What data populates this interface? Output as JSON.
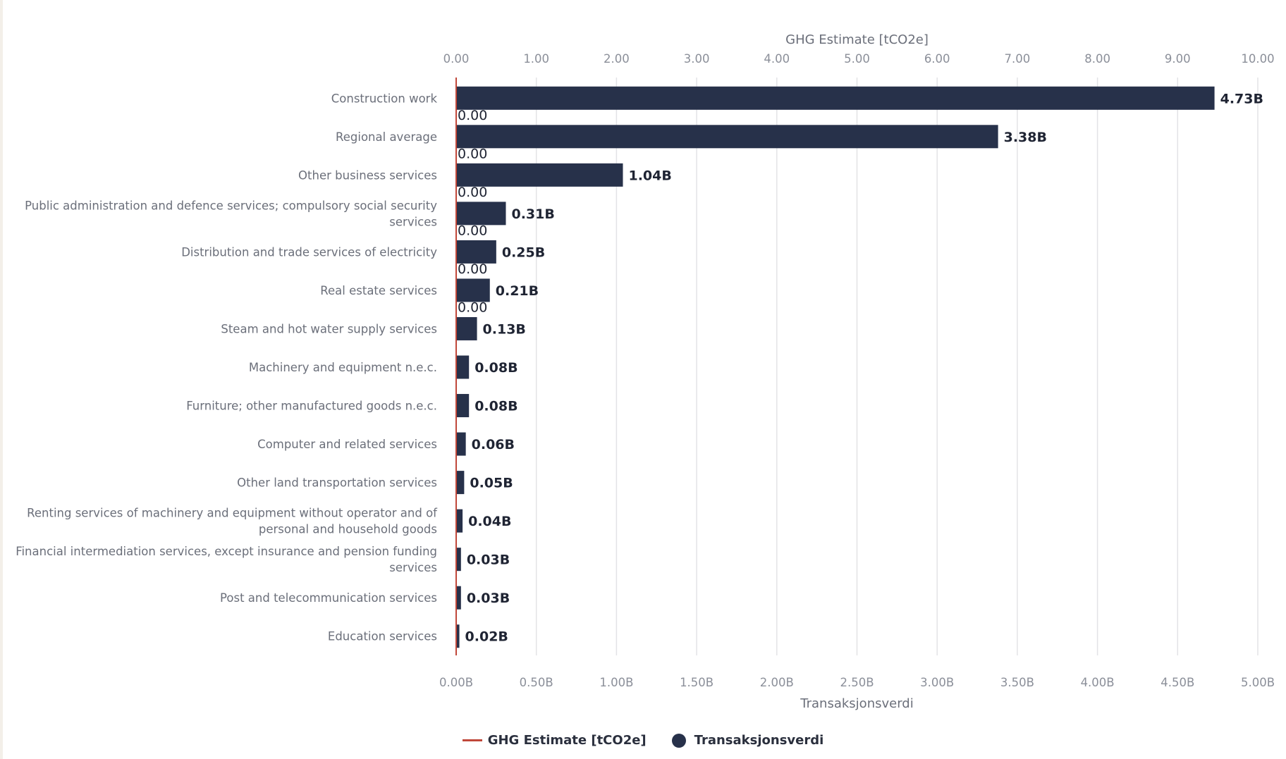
{
  "chart_data": {
    "type": "bar",
    "orientation": "horizontal",
    "categories": [
      "Construction work",
      "Regional average",
      "Other business services",
      "Public administration and defence services; compulsory social security services",
      "Distribution and trade services of electricity",
      "Real estate services",
      "Steam and hot water supply services",
      "Machinery and equipment n.e.c.",
      "Furniture; other manufactured goods n.e.c.",
      "Computer and related services",
      "Other land transportation services",
      "Renting services of machinery and equipment without operator and of personal and household goods",
      "Financial intermediation services, except insurance and pension funding services",
      "Post and telecommunication services",
      "Education services"
    ],
    "category_label_lines": [
      [
        "Construction work"
      ],
      [
        "Regional average"
      ],
      [
        "Other business services"
      ],
      [
        "Public administration and defence services; compulsory social security",
        "services"
      ],
      [
        "Distribution and trade services of electricity"
      ],
      [
        "Real estate services"
      ],
      [
        "Steam and hot water supply services"
      ],
      [
        "Machinery and equipment n.e.c."
      ],
      [
        "Furniture; other manufactured goods n.e.c."
      ],
      [
        "Computer and related services"
      ],
      [
        "Other land transportation services"
      ],
      [
        "Renting services of machinery and equipment without operator and of",
        "personal and household goods"
      ],
      [
        "Financial intermediation services, except insurance and pension funding",
        "services"
      ],
      [
        "Post and telecommunication services"
      ],
      [
        "Education services"
      ]
    ],
    "series": [
      {
        "name": "Transaksjonsverdi",
        "color": "#27314a",
        "values": [
          4.73,
          3.38,
          1.04,
          0.31,
          0.25,
          0.21,
          0.13,
          0.08,
          0.08,
          0.06,
          0.05,
          0.04,
          0.03,
          0.03,
          0.02
        ],
        "value_labels": [
          "4.73B",
          "3.38B",
          "1.04B",
          "0.31B",
          "0.25B",
          "0.21B",
          "0.13B",
          "0.08B",
          "0.08B",
          "0.06B",
          "0.05B",
          "0.04B",
          "0.03B",
          "0.03B",
          "0.02B"
        ]
      },
      {
        "name": "GHG Estimate [tCO2e]",
        "color": "#c0483a",
        "values": [
          0,
          0,
          0,
          0,
          0,
          0,
          0,
          0,
          0,
          0,
          0,
          0,
          0,
          0,
          0
        ],
        "value_labels": [
          "0.00",
          "0.00",
          "0.00",
          "0.00",
          "0.00",
          "0.00"
        ]
      }
    ],
    "bottom_axis": {
      "title": "Transaksjonsverdi",
      "range": [
        0,
        5
      ],
      "ticks": [
        "0.00B",
        "0.50B",
        "1.00B",
        "1.50B",
        "2.00B",
        "2.50B",
        "3.00B",
        "3.50B",
        "4.00B",
        "4.50B",
        "5.00B"
      ]
    },
    "top_axis": {
      "title": "GHG Estimate [tCO2e]",
      "range": [
        0,
        10
      ],
      "ticks": [
        "0.00",
        "1.00",
        "2.00",
        "3.00",
        "4.00",
        "5.00",
        "6.00",
        "7.00",
        "8.00",
        "9.00",
        "10.00"
      ]
    },
    "grid": true,
    "legend": {
      "placement": "bottom",
      "items": [
        "GHG Estimate [tCO2e]",
        "Transaksjonsverdi"
      ]
    }
  }
}
